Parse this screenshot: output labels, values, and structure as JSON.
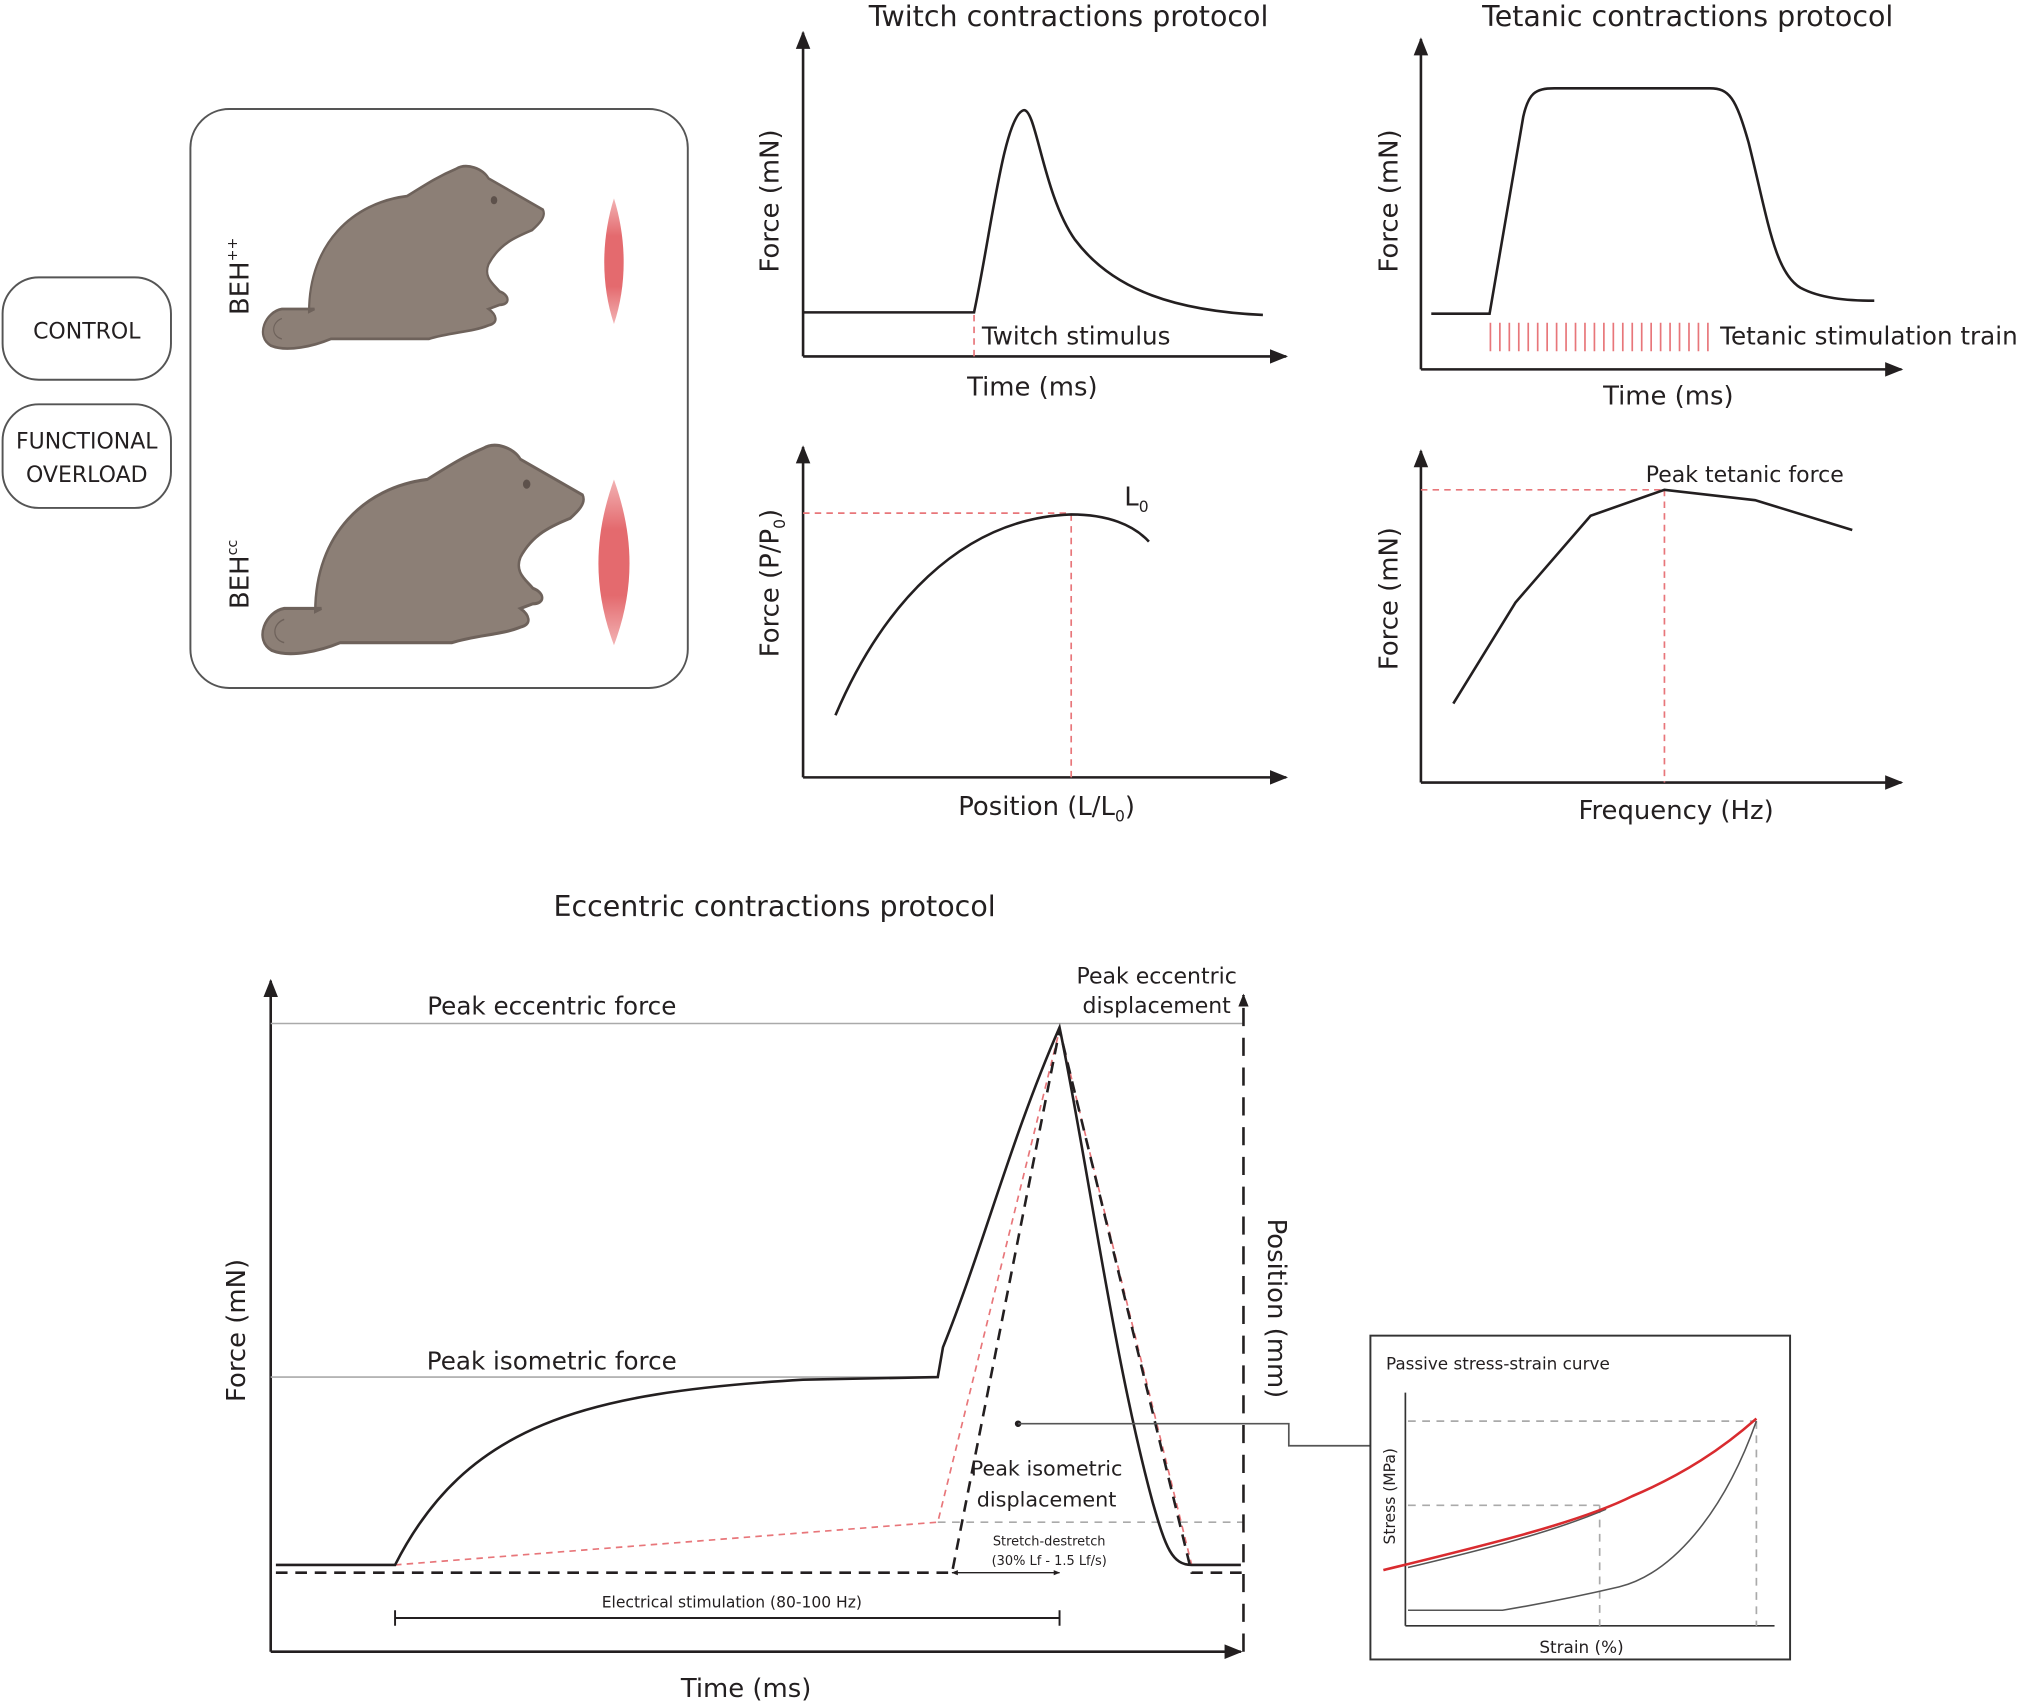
{
  "groups": {
    "control": "CONTROL",
    "overload_line1": "FUNCTIONAL",
    "overload_line2": "OVERLOAD"
  },
  "mice": {
    "wild_type": "BEH",
    "wild_type_sup": "++",
    "mutant": "BEH",
    "mutant_sup": "cc",
    "mouse_color": "#8c7f76",
    "muscle_color": "#e46a6e"
  },
  "twitch": {
    "title": "Twitch contractions protocol",
    "ylabel": "Force (mN)",
    "xlabel": "Time (ms)",
    "annotation": "Twitch stimulus"
  },
  "tetanic": {
    "title": "Tetanic contractions protocol",
    "ylabel": "Force (mN)",
    "xlabel": "Time (ms)",
    "annotation": "Tetanic stimulation train"
  },
  "force_length": {
    "ylabel": "Force (P/P",
    "ylabel_sub": "0",
    "ylabel_end": ")",
    "xlabel": "Position (L/L",
    "xlabel_sub": "0",
    "xlabel_end": ")",
    "annotation": "L",
    "annotation_sub": "0"
  },
  "force_frequency": {
    "ylabel": "Force (mN)",
    "xlabel": "Frequency (Hz)",
    "annotation": "Peak tetanic force"
  },
  "eccentric": {
    "title": "Eccentric contractions protocol",
    "ylabel": "Force (mN)",
    "xlabel": "Time (ms)",
    "y2label": "Position (mm)",
    "peak_eccentric_force": "Peak eccentric force",
    "peak_isometric_force": "Peak isometric force",
    "peak_eccentric_displacement_1": "Peak eccentric",
    "peak_eccentric_displacement_2": "displacement",
    "peak_isometric_displacement_1": "Peak isometric",
    "peak_isometric_displacement_2": "displacement",
    "stretch_1": "Stretch-destretch",
    "stretch_2": "(30% Lf - 1.5 Lf/s)",
    "stimulation": "Electrical stimulation (80-100 Hz)"
  },
  "passive": {
    "title": "Passive stress-strain curve",
    "ylabel": "Stress (MPa)",
    "xlabel": "Strain (%)",
    "curve_color": "#d92b2f"
  },
  "colors": {
    "text": "#231f20",
    "dashed_red": "#e8767a"
  }
}
